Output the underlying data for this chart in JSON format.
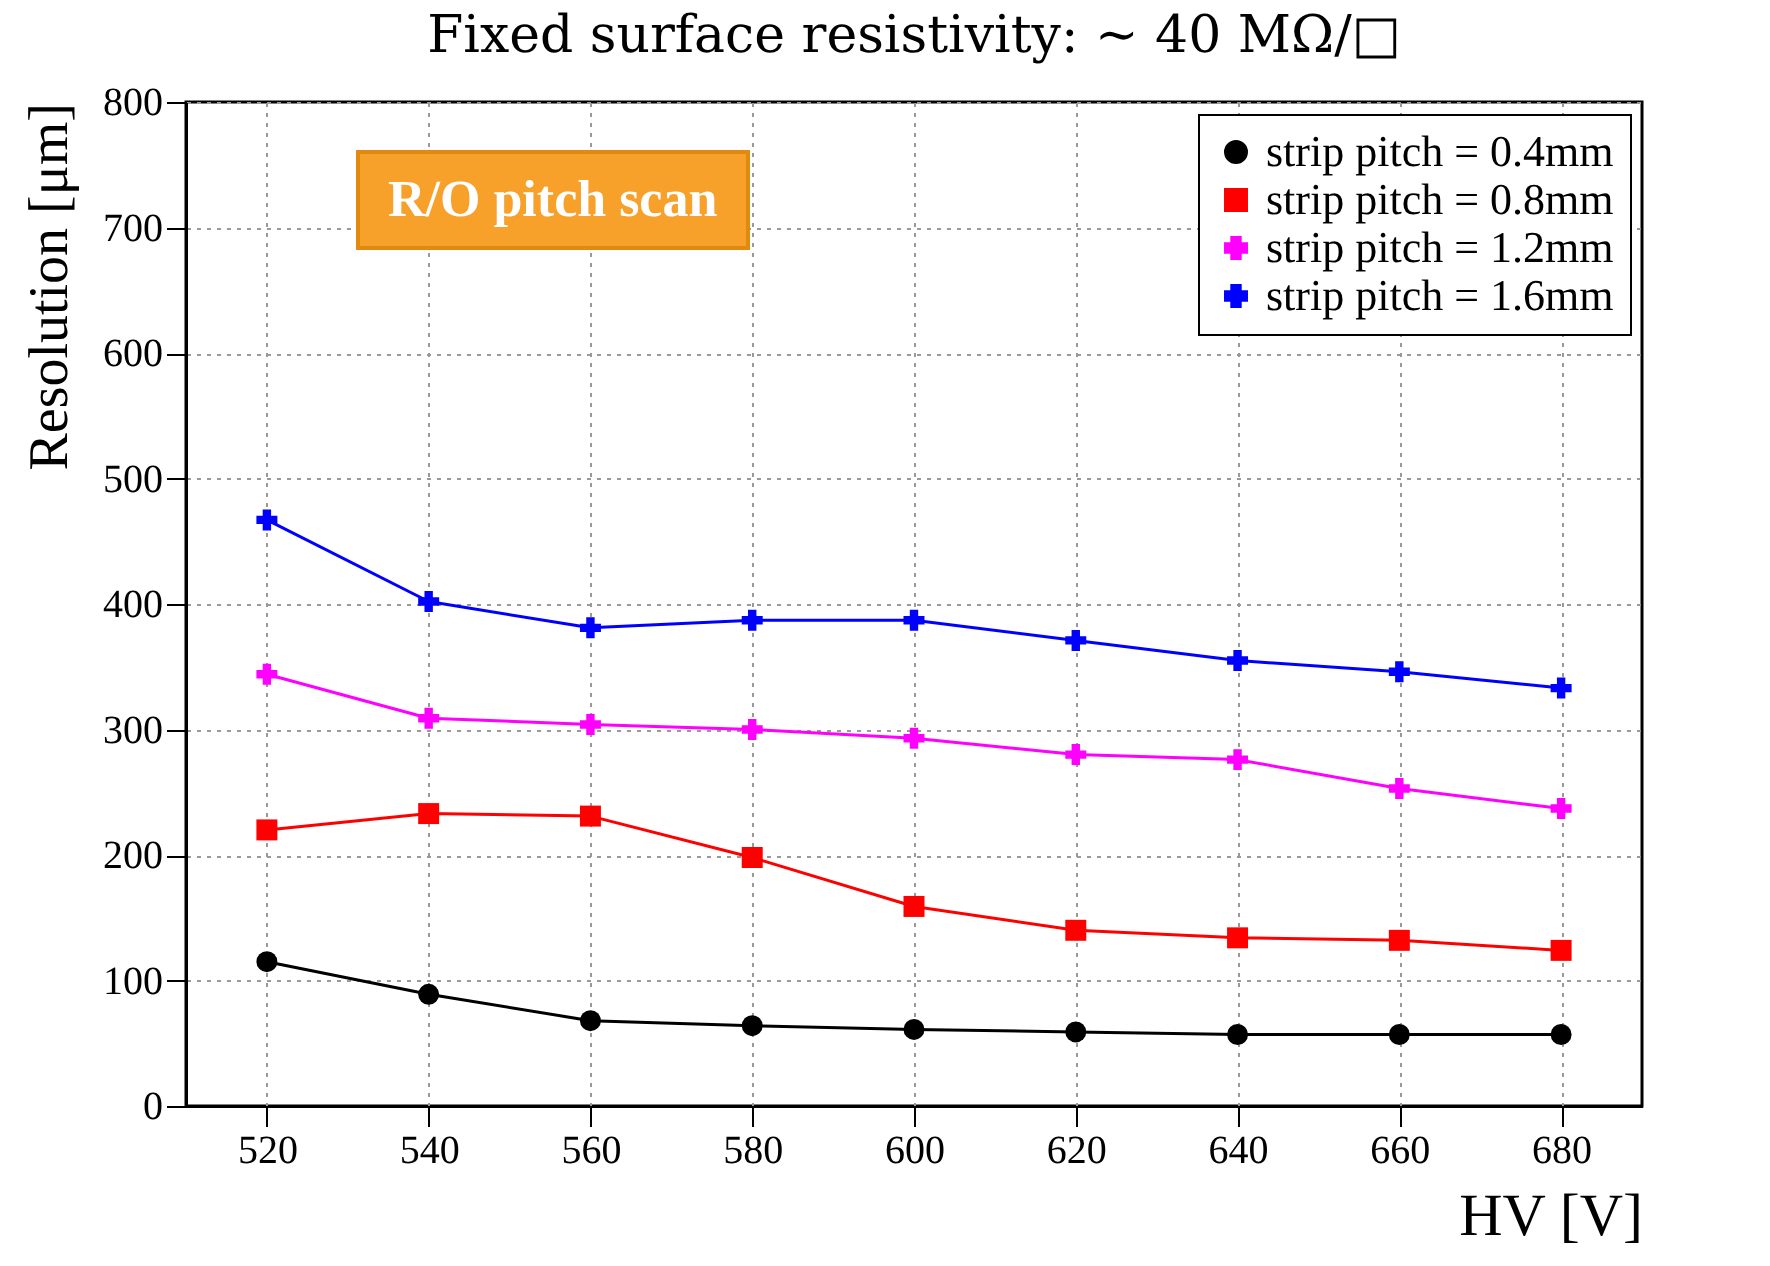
{
  "chart_data": {
    "type": "line",
    "title": "Fixed surface resistivity: ~ 40 MΩ/□",
    "xlabel": "HV [V]",
    "ylabel": "Resolution [μm]",
    "annotations": [
      "R/O pitch scan"
    ],
    "x": [
      520,
      540,
      560,
      580,
      600,
      620,
      640,
      660,
      680
    ],
    "xlim": [
      510,
      690
    ],
    "xticks": [
      520,
      540,
      560,
      580,
      600,
      620,
      640,
      660,
      680
    ],
    "ylim": [
      0,
      800
    ],
    "yticks": [
      0,
      100,
      200,
      300,
      400,
      500,
      600,
      700,
      800
    ],
    "grid": true,
    "legend": "top right",
    "series": [
      {
        "name": "strip pitch = 0.4mm",
        "color": "#000000",
        "marker": "circle",
        "values": [
          115,
          89,
          68,
          64,
          61,
          59,
          57,
          57,
          57
        ]
      },
      {
        "name": "strip pitch = 0.8mm",
        "color": "#ff0000",
        "marker": "square",
        "values": [
          220,
          233,
          231,
          198,
          159,
          140,
          134,
          132,
          124
        ]
      },
      {
        "name": "strip pitch = 1.2mm",
        "color": "#ff00ff",
        "marker": "cross",
        "values": [
          344,
          309,
          304,
          300,
          293,
          280,
          276,
          253,
          237
        ]
      },
      {
        "name": "strip pitch = 1.6mm",
        "color": "#0000ff",
        "marker": "cross",
        "values": [
          467,
          402,
          381,
          387,
          387,
          371,
          355,
          346,
          333
        ]
      }
    ]
  }
}
